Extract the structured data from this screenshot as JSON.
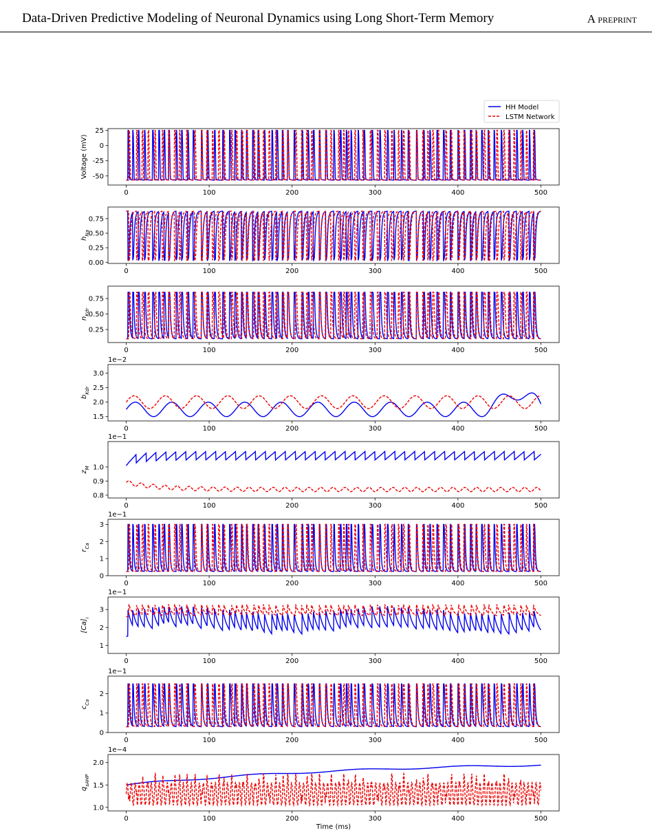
{
  "header": {
    "title": "Data-Driven Predictive Modeling of Neuronal Dynamics using Long Short-Term Memory",
    "tag": "A preprint"
  },
  "colors": {
    "hh": "#0000ee",
    "lstm": "#ee0000",
    "axis": "#000000"
  },
  "legend": {
    "location": "top-right",
    "items": [
      "HH Model",
      "LSTM Network"
    ]
  },
  "chart_data": [
    {
      "type": "line",
      "ylabel": "Voltage (mV)",
      "ylabel_sub": "",
      "multiplier": "",
      "xlabel": "",
      "xlim": [
        -22,
        522
      ],
      "ylim": [
        -65,
        28
      ],
      "yticks": [
        25,
        0,
        -25,
        -50
      ],
      "xticks": [
        0,
        100,
        200,
        300,
        400,
        500
      ],
      "series": [
        "HH Model",
        "LSTM Network"
      ],
      "shape": "spike"
    },
    {
      "type": "line",
      "ylabel": "h",
      "ylabel_sub": "Na",
      "multiplier": "",
      "xlabel": "",
      "xlim": [
        -22,
        522
      ],
      "ylim": [
        -0.02,
        0.95
      ],
      "yticks": [
        0.75,
        0.5,
        0.25,
        0.0
      ],
      "ytick_labels": [
        "0.75",
        "0.50",
        "0.25",
        "0.00"
      ],
      "xticks": [
        0,
        100,
        200,
        300,
        400,
        500
      ],
      "series": [
        "HH Model",
        "LSTM Network"
      ],
      "shape": "gate"
    },
    {
      "type": "line",
      "ylabel": "n",
      "ylabel_sub": "Kdr",
      "multiplier": "",
      "xlabel": "",
      "xlim": [
        -22,
        522
      ],
      "ylim": [
        0.04,
        0.95
      ],
      "yticks": [
        0.75,
        0.5,
        0.25
      ],
      "ytick_labels": [
        "0.75",
        "0.50",
        "0.25"
      ],
      "xticks": [
        0,
        100,
        200,
        300,
        400,
        500
      ],
      "series": [
        "HH Model",
        "LSTM Network"
      ],
      "shape": "gate_up"
    },
    {
      "type": "line",
      "ylabel": "b",
      "ylabel_sub": "Kdr",
      "multiplier": "1e−2",
      "xlabel": "",
      "xlim": [
        -22,
        522
      ],
      "ylim": [
        1.35,
        3.3
      ],
      "yticks": [
        3.0,
        2.5,
        2.0,
        1.5
      ],
      "ytick_labels": [
        "3.0",
        "2.5",
        "2.0",
        "1.5"
      ],
      "xticks": [
        0,
        100,
        200,
        300,
        400,
        500
      ],
      "series": [
        "HH Model",
        "LSTM Network"
      ],
      "shape": "slow_b"
    },
    {
      "type": "line",
      "ylabel": "z",
      "ylabel_sub": "M",
      "multiplier": "1e−1",
      "xlabel": "",
      "xlim": [
        -22,
        522
      ],
      "ylim": [
        0.78,
        1.18
      ],
      "yticks": [
        1.0,
        0.9,
        0.8
      ],
      "ytick_labels": [
        "1.0",
        "0.9",
        "0.8"
      ],
      "xticks": [
        0,
        100,
        200,
        300,
        400,
        500
      ],
      "series": [
        "HH Model",
        "LSTM Network"
      ],
      "shape": "slow_z"
    },
    {
      "type": "line",
      "ylabel": "r",
      "ylabel_sub": "Ca",
      "multiplier": "1e−1",
      "xlabel": "",
      "xlim": [
        -22,
        522
      ],
      "ylim": [
        0,
        3.3
      ],
      "yticks": [
        3,
        2,
        1,
        0
      ],
      "ytick_labels": [
        "3",
        "2",
        "1",
        "0"
      ],
      "xticks": [
        0,
        100,
        200,
        300,
        400,
        500
      ],
      "series": [
        "HH Model",
        "LSTM Network"
      ],
      "shape": "pulse"
    },
    {
      "type": "line",
      "ylabel": "[Ca]",
      "ylabel_sub": "i",
      "multiplier": "1e−1",
      "xlabel": "",
      "xlim": [
        -22,
        522
      ],
      "ylim": [
        0.55,
        3.7
      ],
      "yticks": [
        3,
        2,
        1
      ],
      "ytick_labels": [
        "3",
        "2",
        "1"
      ],
      "xticks": [
        0,
        100,
        200,
        300,
        400,
        500
      ],
      "series": [
        "HH Model",
        "LSTM Network"
      ],
      "shape": "calcium"
    },
    {
      "type": "line",
      "ylabel": "c",
      "ylabel_sub": "Ca",
      "multiplier": "1e−1",
      "xlabel": "",
      "xlim": [
        -22,
        522
      ],
      "ylim": [
        0,
        2.9
      ],
      "yticks": [
        2,
        1,
        0
      ],
      "ytick_labels": [
        "2",
        "1",
        "0"
      ],
      "xticks": [
        0,
        100,
        200,
        300,
        400,
        500
      ],
      "series": [
        "HH Model",
        "LSTM Network"
      ],
      "shape": "pulse_c"
    },
    {
      "type": "line",
      "ylabel": "q",
      "ylabel_sub": "sAHP",
      "multiplier": "1e−4",
      "xlabel": "Time (ms)",
      "xlim": [
        -22,
        522
      ],
      "ylim": [
        0.92,
        2.18
      ],
      "yticks": [
        2.0,
        1.5,
        1.0
      ],
      "ytick_labels": [
        "2.0",
        "1.5",
        "1.0"
      ],
      "xticks": [
        0,
        100,
        200,
        300,
        400,
        500
      ],
      "series": [
        "HH Model",
        "LSTM Network"
      ],
      "shape": "sahp"
    }
  ]
}
